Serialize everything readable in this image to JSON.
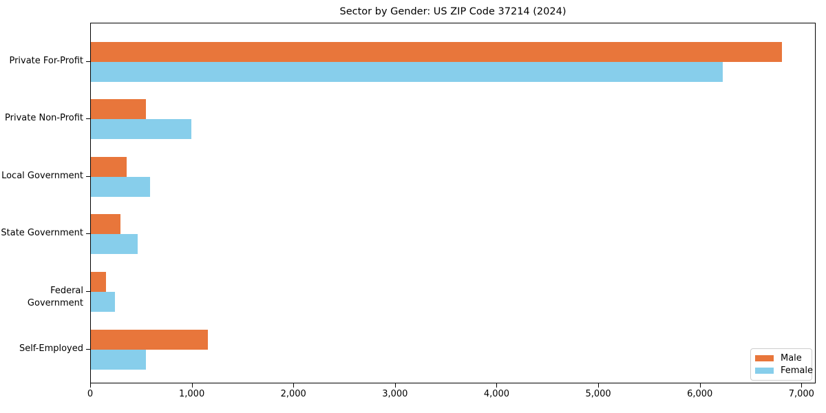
{
  "chart_data": {
    "type": "bar",
    "orientation": "horizontal",
    "title": "Sector by Gender: US ZIP Code 37214 (2024)",
    "categories": [
      "Private For-Profit",
      "Private Non-Profit",
      "Local Government",
      "State Government",
      "Federal Government",
      "Self-Employed"
    ],
    "series": [
      {
        "name": "Male",
        "color": "#E8763B",
        "values": [
          6800,
          540,
          350,
          290,
          150,
          1150
        ]
      },
      {
        "name": "Female",
        "color": "#87CEEB",
        "values": [
          6220,
          990,
          580,
          460,
          240,
          540
        ]
      }
    ],
    "xlabel": "",
    "ylabel": "",
    "x_ticks": [
      0,
      1000,
      2000,
      3000,
      4000,
      5000,
      6000,
      7000
    ],
    "x_tick_labels": [
      "0",
      "1,000",
      "2,000",
      "3,000",
      "4,000",
      "5,000",
      "6,000",
      "7,000"
    ],
    "xlim": [
      0,
      7140
    ],
    "grid": false,
    "legend_position": "lower right"
  }
}
